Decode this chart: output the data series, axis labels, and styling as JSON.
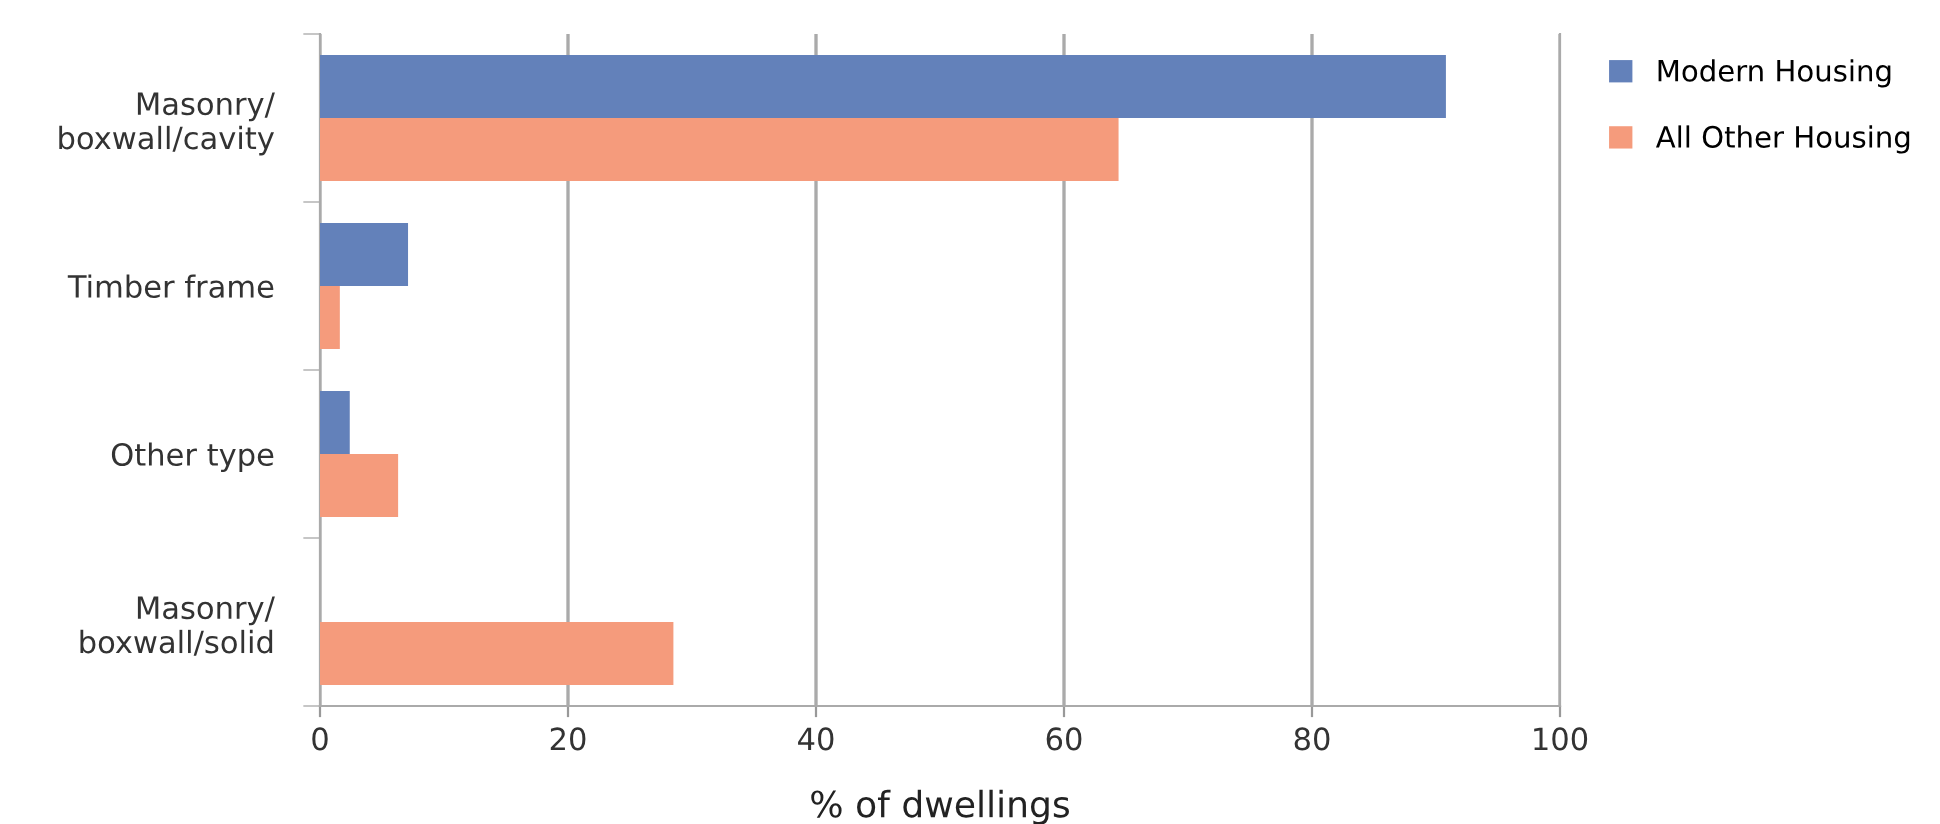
{
  "chart_data": {
    "type": "bar",
    "orientation": "horizontal",
    "xlabel": "% of dwellings",
    "categories": [
      "Masonry/\nboxwall/cavity",
      "Timber frame",
      "Other type",
      "Masonry/\nboxwall/solid"
    ],
    "series": [
      {
        "name": "Modern Housing",
        "color": "#6381ba",
        "values": [
          90.8,
          7.1,
          2.4,
          0
        ]
      },
      {
        "name": "All Other Housing",
        "color": "#f59b7c",
        "values": [
          64.4,
          1.6,
          6.3,
          28.5
        ]
      }
    ],
    "xlim": [
      0,
      100
    ],
    "xticks": [
      0,
      20,
      40,
      60,
      80,
      100
    ],
    "grid": "x",
    "legend": "top right"
  }
}
